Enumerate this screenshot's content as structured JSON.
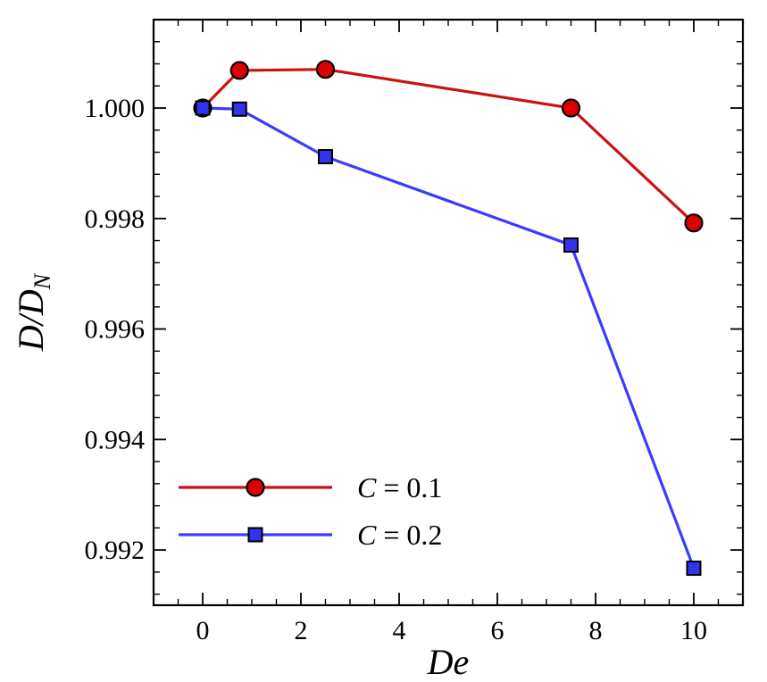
{
  "chart_data": {
    "type": "line",
    "xlabel": "De",
    "ylabel": {
      "main": "D/D",
      "sub": "N"
    },
    "xlim": [
      -1,
      11
    ],
    "ylim": [
      0.991,
      1.0016
    ],
    "xticks": [
      0,
      2,
      4,
      6,
      8,
      10
    ],
    "xtick_labels": [
      "0",
      "2",
      "4",
      "6",
      "8",
      "10"
    ],
    "yticks": [
      0.992,
      0.994,
      0.996,
      0.998,
      1.0
    ],
    "ytick_labels": [
      "0.992",
      "0.994",
      "0.996",
      "0.998",
      "1.000"
    ],
    "grid": false,
    "legend_position": "bottom-left",
    "series": [
      {
        "name": "C = 0.1",
        "legend_var": "C",
        "legend_rest": " = 0.1",
        "marker": "circle",
        "line_color": "#cc1111",
        "fill_color": "#dd0000",
        "x": [
          0,
          0.75,
          2.5,
          7.5,
          10
        ],
        "y": [
          1.0,
          1.00068,
          1.0007,
          1.0,
          0.99792
        ]
      },
      {
        "name": "C = 0.2",
        "legend_var": "C",
        "legend_rest": " = 0.2",
        "marker": "square",
        "line_color": "#3b3bff",
        "fill_color": "#3333ee",
        "x": [
          0,
          0.75,
          2.5,
          7.5,
          10
        ],
        "y": [
          1.0,
          0.99998,
          0.99912,
          0.99752,
          0.99167
        ]
      }
    ]
  }
}
